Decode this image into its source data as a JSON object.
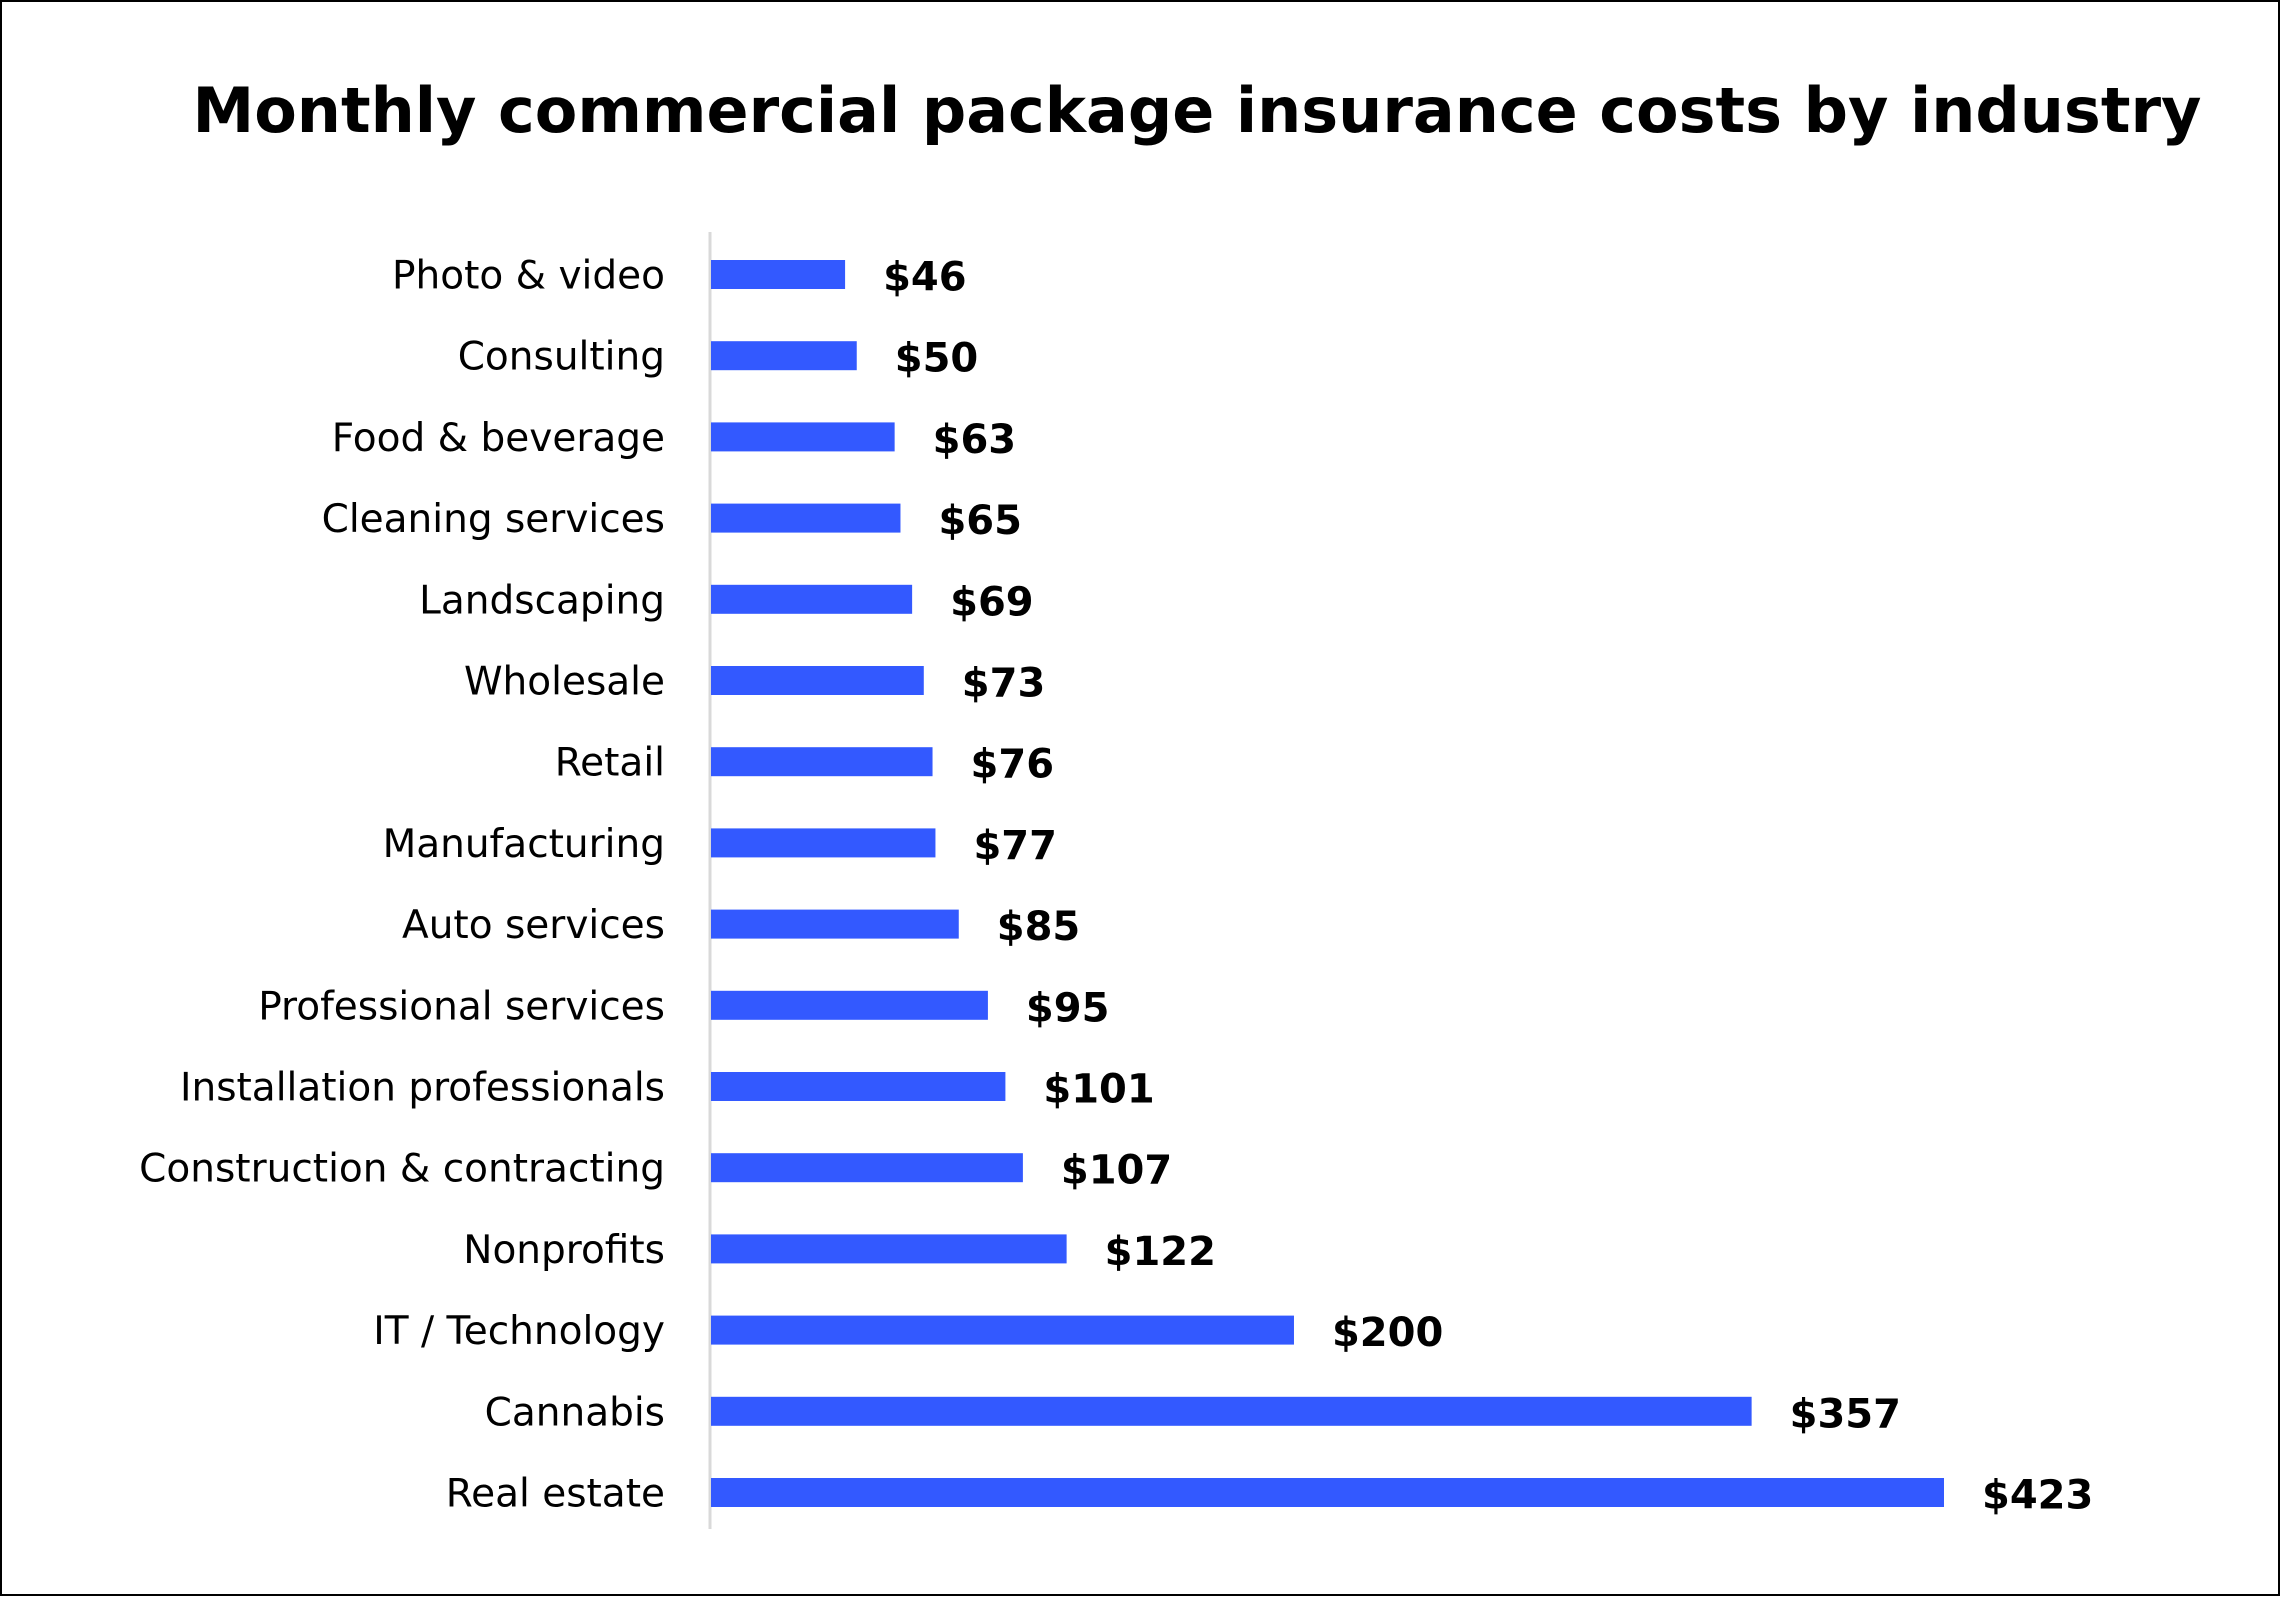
{
  "chart_data": {
    "type": "bar",
    "orientation": "horizontal",
    "title": "Monthly commercial package insurance costs by industry",
    "xlabel": "",
    "ylabel": "",
    "categories": [
      "Photo & video",
      "Consulting",
      "Food & beverage",
      "Cleaning services",
      "Landscaping",
      "Wholesale",
      "Retail",
      "Manufacturing",
      "Auto services",
      "Professional services",
      "Installation professionals",
      "Construction & contracting",
      "Nonprofits",
      "IT / Technology",
      "Cannabis",
      "Real estate"
    ],
    "values": [
      46,
      50,
      63,
      65,
      69,
      73,
      76,
      77,
      85,
      95,
      101,
      107,
      122,
      200,
      357,
      423
    ],
    "data_labels": [
      "$46",
      "$50",
      "$63",
      "$65",
      "$69",
      "$73",
      "$76",
      "$77",
      "$85",
      "$95",
      "$101",
      "$107",
      "$122",
      "$200",
      "$357",
      "$423"
    ],
    "xlim": [
      0,
      423
    ],
    "grid": false,
    "legend": "none",
    "bar_color": "#3359FF"
  }
}
